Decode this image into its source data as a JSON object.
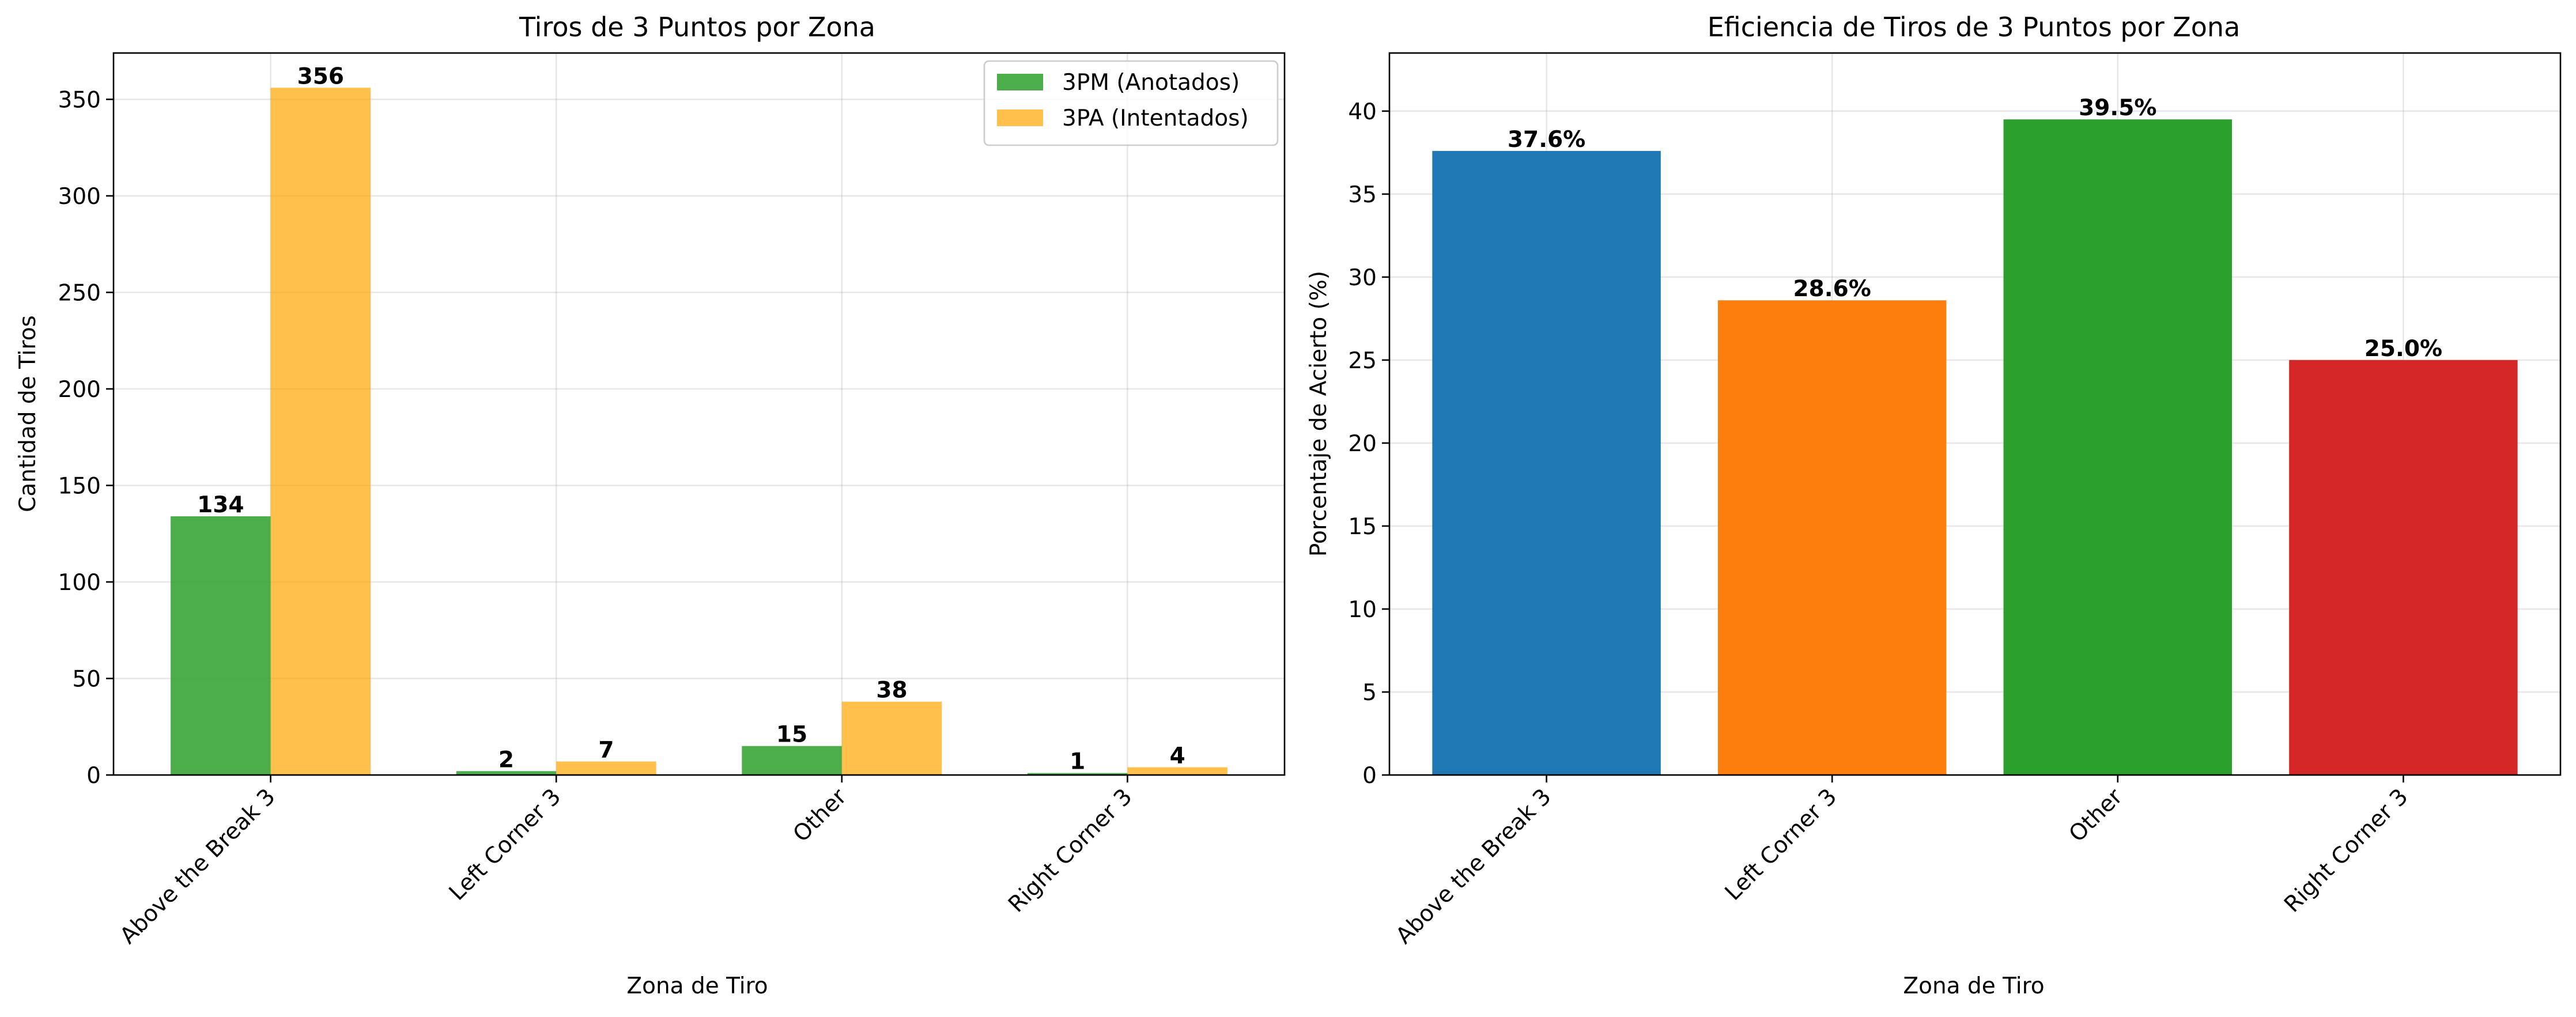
{
  "chart_data": [
    {
      "type": "bar",
      "title": "Tiros de 3 Puntos por Zona",
      "xlabel": "Zona de Tiro",
      "ylabel": "Cantidad de Tiros",
      "categories": [
        "Above the Break 3",
        "Left Corner 3",
        "Other",
        "Right Corner 3"
      ],
      "series": [
        {
          "name": "3PM (Anotados)",
          "values": [
            134,
            2,
            15,
            1
          ],
          "color": "#2ca02c",
          "labels": [
            "134",
            "2",
            "15",
            "1"
          ]
        },
        {
          "name": "3PA (Intentados)",
          "values": [
            356,
            7,
            38,
            4
          ],
          "color": "#ffa500",
          "labels": [
            "356",
            "7",
            "38",
            "4"
          ]
        }
      ],
      "ylim": [
        0,
        374
      ],
      "yticks": [
        0,
        50,
        100,
        150,
        200,
        250,
        300,
        350
      ],
      "ytick_labels": [
        "0",
        "50",
        "100",
        "150",
        "200",
        "250",
        "300",
        "350"
      ],
      "grid": true,
      "legend": "top-right"
    },
    {
      "type": "bar",
      "title": "Eficiencia de Tiros de 3 Puntos por Zona",
      "xlabel": "Zona de Tiro",
      "ylabel": "Porcentaje de Acierto (%)",
      "categories": [
        "Above the Break 3",
        "Left Corner 3",
        "Other",
        "Right Corner 3"
      ],
      "values": [
        37.6,
        28.6,
        39.5,
        25.0
      ],
      "labels": [
        "37.6%",
        "28.6%",
        "39.5%",
        "25.0%"
      ],
      "colors": [
        "#1f77b4",
        "#ff7f0e",
        "#2ca02c",
        "#d62728"
      ],
      "ylim": [
        0,
        43.5
      ],
      "yticks": [
        0,
        5,
        10,
        15,
        20,
        25,
        30,
        35,
        40
      ],
      "ytick_labels": [
        "0",
        "5",
        "10",
        "15",
        "20",
        "25",
        "30",
        "35",
        "40"
      ],
      "grid": true
    }
  ]
}
